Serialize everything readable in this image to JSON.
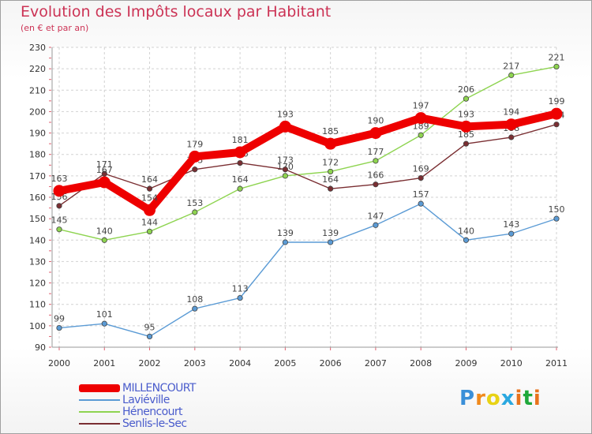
{
  "title": "Evolution des Impôts locaux par Habitant",
  "subtitle": "(en € et par an)",
  "logo": {
    "text": "Proxiti",
    "letter_colors": [
      "#3a8fd8",
      "#f08a1c",
      "#e8d214",
      "#2aa8e0",
      "#e8731c",
      "#1fa83a",
      "#e8731c"
    ]
  },
  "chart_data": {
    "type": "line",
    "title": "Evolution des Impôts locaux par Habitant",
    "subtitle": "(en € et par an)",
    "xlabel": "",
    "ylabel": "",
    "ylim": [
      90,
      230
    ],
    "ytick_step": 10,
    "yticks": [
      90,
      100,
      110,
      120,
      130,
      140,
      150,
      160,
      170,
      180,
      190,
      200,
      210,
      220,
      230
    ],
    "categories": [
      "2000",
      "2001",
      "2002",
      "2003",
      "2004",
      "2005",
      "2006",
      "2007",
      "2008",
      "2009",
      "2010",
      "2011"
    ],
    "grid": true,
    "legend_position": "bottom-left",
    "series": [
      {
        "name": "MILLENCOURT",
        "color": "#ee0000",
        "values": [
          163,
          167,
          154,
          179,
          181,
          193,
          185,
          190,
          197,
          193,
          194,
          199
        ],
        "emphasis": true
      },
      {
        "name": "Laviéville",
        "color": "#5b9bd5",
        "values": [
          99,
          101,
          95,
          108,
          113,
          139,
          139,
          147,
          157,
          140,
          143,
          150
        ],
        "emphasis": false
      },
      {
        "name": "Hénencourt",
        "color": "#8ed450",
        "values": [
          145,
          140,
          144,
          153,
          164,
          170,
          172,
          177,
          189,
          206,
          217,
          221
        ],
        "emphasis": false
      },
      {
        "name": "Senlis-le-Sec",
        "color": "#7a2e32",
        "values": [
          156,
          171,
          164,
          173,
          176,
          173,
          164,
          166,
          169,
          185,
          188,
          194
        ],
        "emphasis": false
      }
    ]
  }
}
